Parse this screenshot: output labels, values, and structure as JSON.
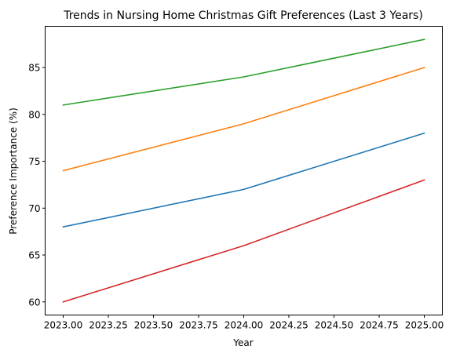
{
  "chart_data": {
    "type": "line",
    "title": "Trends in Nursing Home Christmas Gift Preferences (Last 3 Years)",
    "xlabel": "Year",
    "ylabel": "Preference Importance (%)",
    "x": [
      2023,
      2024,
      2025
    ],
    "xlim": [
      2022.9,
      2025.1
    ],
    "ylim": [
      58.6,
      89.4
    ],
    "x_ticks": [
      2023.0,
      2023.25,
      2023.5,
      2023.75,
      2024.0,
      2024.25,
      2024.5,
      2024.75,
      2025.0
    ],
    "x_tick_labels": [
      "2023.00",
      "2023.25",
      "2023.50",
      "2023.75",
      "2024.00",
      "2024.25",
      "2024.50",
      "2024.75",
      "2025.00"
    ],
    "y_ticks": [
      60,
      65,
      70,
      75,
      80,
      85
    ],
    "y_tick_labels": [
      "60",
      "65",
      "70",
      "75",
      "80",
      "85"
    ],
    "grid": false,
    "legend": "none",
    "series": [
      {
        "color": "#1f77b4",
        "values": [
          68,
          72,
          78
        ]
      },
      {
        "color": "#ff7f0e",
        "values": [
          74,
          79,
          85
        ]
      },
      {
        "color": "#2ca02c",
        "values": [
          81,
          84,
          88
        ]
      },
      {
        "color": "#d62728",
        "values": [
          60,
          66,
          73
        ]
      }
    ]
  }
}
